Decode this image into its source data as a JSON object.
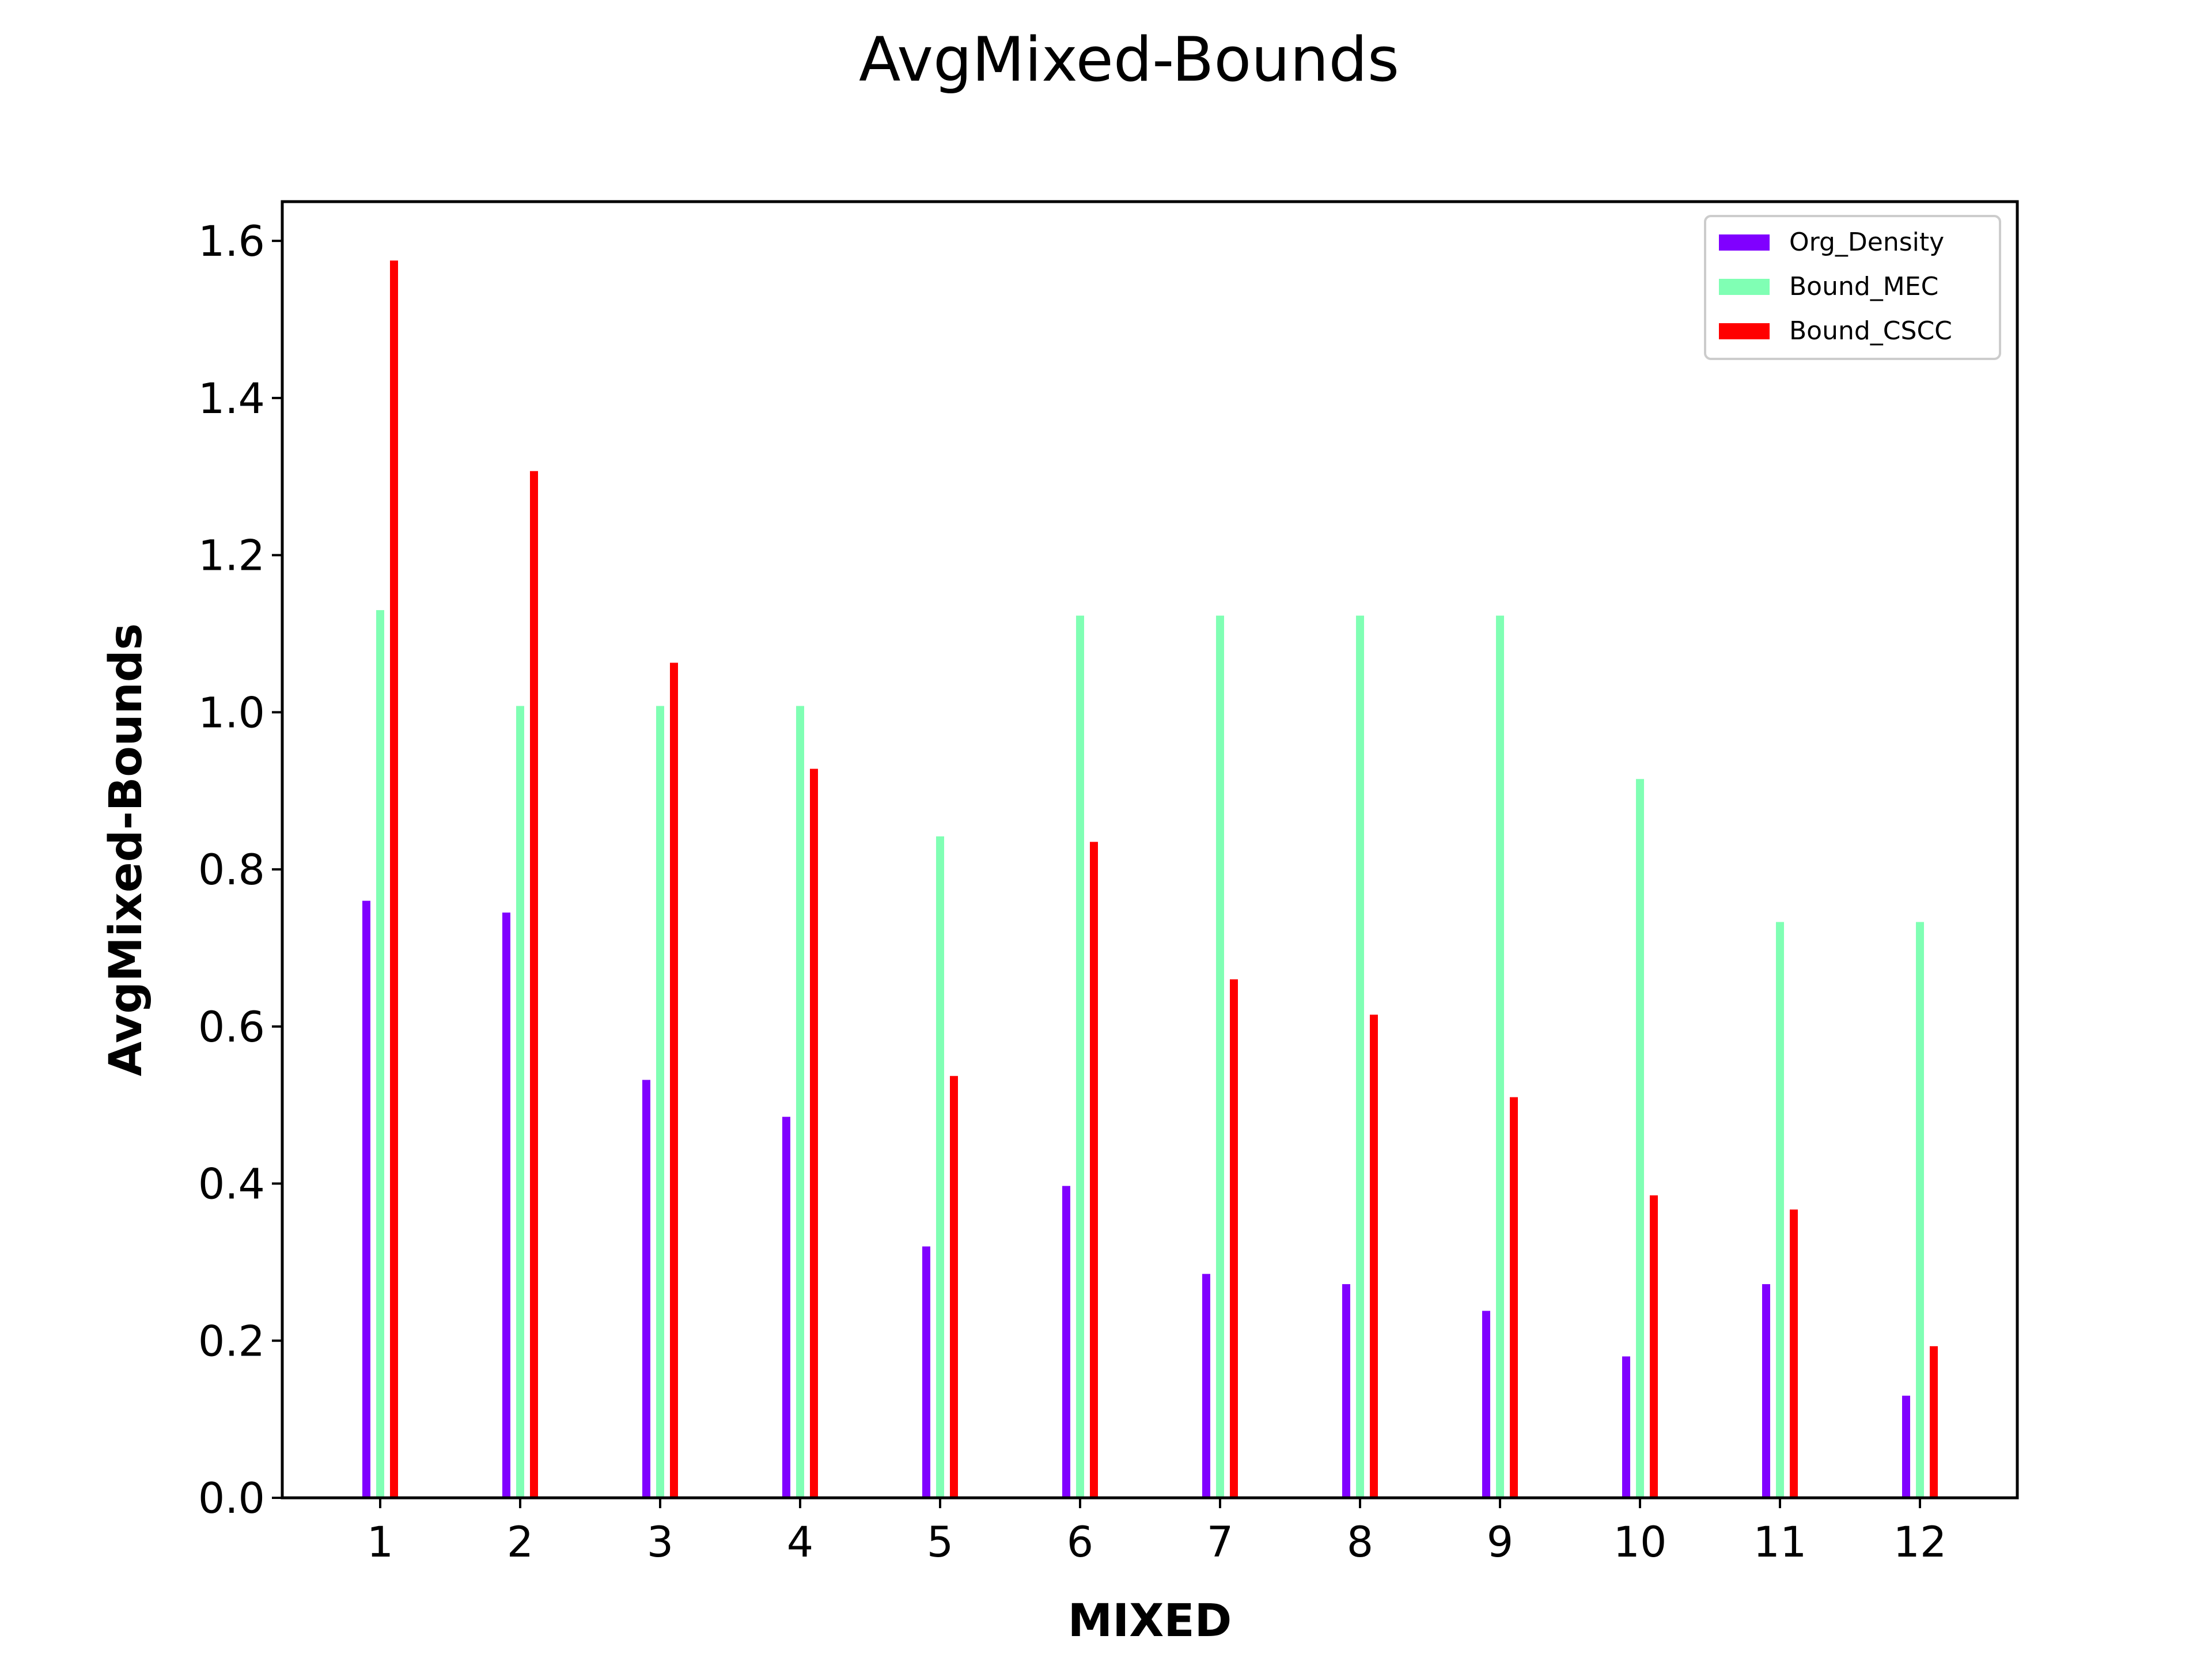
{
  "chart_data": {
    "type": "bar",
    "title": "AvgMixed-Bounds",
    "xlabel": "MIXED",
    "ylabel": "AvgMixed-Bounds",
    "categories": [
      "1",
      "2",
      "3",
      "4",
      "5",
      "6",
      "7",
      "8",
      "9",
      "10",
      "11",
      "12"
    ],
    "ylim": [
      0,
      1.65
    ],
    "yticks": [
      "0.0",
      "0.2",
      "0.4",
      "0.6",
      "0.8",
      "1.0",
      "1.2",
      "1.4",
      "1.6"
    ],
    "grid": false,
    "legend_position": "top-right",
    "series": [
      {
        "name": "Org_Density",
        "color": "#8000ff",
        "values": [
          0.76,
          0.745,
          0.532,
          0.485,
          0.32,
          0.397,
          0.285,
          0.272,
          0.238,
          0.18,
          0.272,
          0.13
        ]
      },
      {
        "name": "Bound_MEC",
        "color": "#80ffb4",
        "values": [
          1.13,
          1.008,
          1.008,
          1.008,
          0.842,
          1.123,
          1.123,
          1.123,
          1.123,
          0.915,
          0.733,
          0.733
        ]
      },
      {
        "name": "Bound_CSCC",
        "color": "#ff0000",
        "values": [
          1.575,
          1.307,
          1.063,
          0.928,
          0.537,
          0.835,
          0.66,
          0.615,
          0.51,
          0.385,
          0.367,
          0.193
        ]
      }
    ]
  }
}
